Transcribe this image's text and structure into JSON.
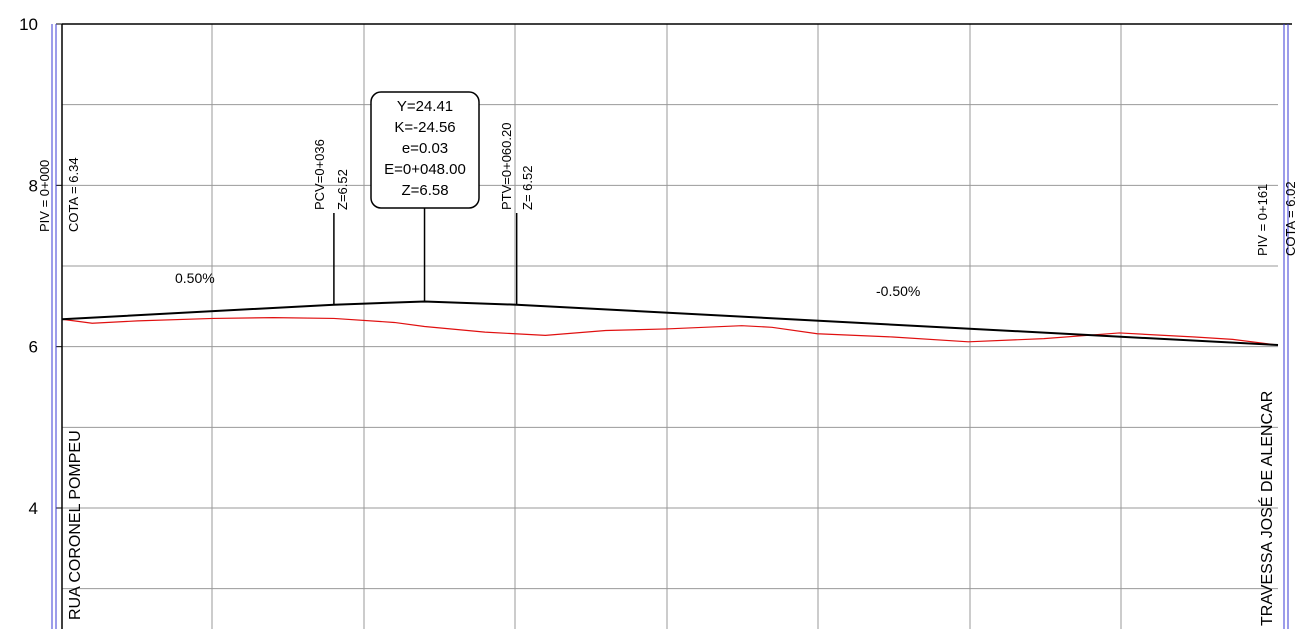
{
  "colors": {
    "background": "#ffffff",
    "grid": "#999999",
    "frame": "#000000",
    "design_grade": "#000000",
    "terrain": "#e01010",
    "station_lines": "#3a3ad6"
  },
  "axis": {
    "y_ticks": [
      "10",
      "8",
      "6",
      "4"
    ],
    "y_tick_values": [
      10,
      8,
      6,
      4
    ],
    "ylim": [
      2.5,
      10.0
    ],
    "xlim": [
      0,
      161
    ]
  },
  "grades": {
    "left": "0.50%",
    "right": "-0.50%"
  },
  "stations": {
    "start": {
      "piv": "PIV = 0+000",
      "cota": "COTA = 6.34"
    },
    "pcv": {
      "station": "PCV=0+036",
      "z": "Z=6.52"
    },
    "ptv": {
      "station": "PTV=0+060.20",
      "z": "Z= 6.52"
    },
    "end": {
      "piv": "PIV = 0+161",
      "cota": "COTA = 6.02"
    }
  },
  "curve_box": {
    "y": "Y=24.41",
    "k": "K=-24.56",
    "e": "e=0.03",
    "E": "E=0+048.00",
    "z": "Z=6.58"
  },
  "roads": {
    "left": "RUA CORONEL POMPEU",
    "right": "TRAVESSA JOSÉ DE ALENCAR"
  },
  "chart_data": {
    "type": "line",
    "title": "",
    "xlabel": "",
    "ylabel": "",
    "x_unit": "station (m)",
    "ylim": [
      2.5,
      10.0
    ],
    "xlim": [
      0,
      161
    ],
    "grid": true,
    "series": [
      {
        "role": "design",
        "x": [
          0,
          36,
          48,
          60.2,
          161
        ],
        "y": [
          6.34,
          6.52,
          6.56,
          6.52,
          6.02
        ]
      },
      {
        "role": "terrain",
        "x": [
          0,
          4,
          10,
          20,
          28,
          36,
          44,
          48,
          56,
          64,
          72,
          80,
          90,
          94,
          100,
          110,
          120,
          130,
          140,
          150,
          155,
          161
        ],
        "y": [
          6.34,
          6.29,
          6.32,
          6.35,
          6.36,
          6.35,
          6.3,
          6.25,
          6.18,
          6.14,
          6.2,
          6.22,
          6.26,
          6.24,
          6.16,
          6.12,
          6.06,
          6.1,
          6.17,
          6.12,
          6.09,
          6.02
        ]
      }
    ]
  }
}
